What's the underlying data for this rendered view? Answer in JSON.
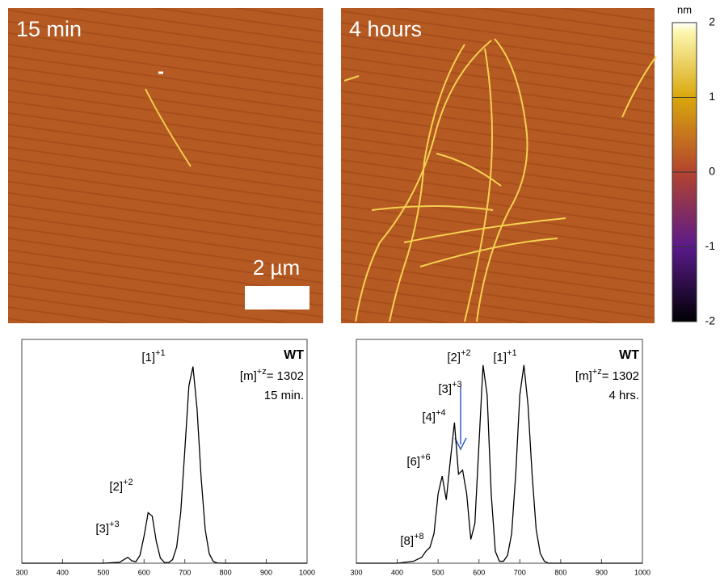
{
  "panels": [
    {
      "label": "15 min"
    },
    {
      "label": "4 hours"
    }
  ],
  "scale_bar": "2 µm",
  "colorbar": {
    "label": "nm",
    "lim": [
      -2,
      2
    ],
    "ticks": [
      2,
      1,
      0,
      -1,
      -2
    ]
  },
  "chart_data": [
    {
      "type": "line",
      "x": [
        300,
        400,
        500,
        540,
        560,
        570,
        580,
        590,
        600,
        610,
        620,
        630,
        640,
        650,
        660,
        670,
        680,
        690,
        700,
        710,
        720,
        730,
        740,
        750,
        760,
        770,
        780,
        800,
        900,
        1000
      ],
      "series": [
        {
          "color": "#000000",
          "values": [
            0,
            0,
            0,
            0.005,
            0.03,
            0.012,
            0.008,
            0.04,
            0.137,
            0.255,
            0.238,
            0.11,
            0.026,
            0.004,
            0.003,
            0.018,
            0.082,
            0.257,
            0.571,
            0.895,
            0.993,
            0.78,
            0.433,
            0.17,
            0.047,
            0.009,
            0.001,
            0,
            0,
            0
          ]
        }
      ],
      "xlim": [
        300,
        1000
      ],
      "xticks": [
        300,
        400,
        500,
        600,
        700,
        800,
        900,
        1000
      ],
      "ylim": [
        0,
        1.13
      ],
      "annotations": [
        {
          "text": "[1]",
          "sup": "+1"
        },
        {
          "text": "[2]",
          "sup": "+2"
        },
        {
          "text": "[3]",
          "sup": "+3"
        }
      ],
      "info": {
        "title": "WT",
        "m": "[m]",
        "z": "+z",
        "value": "= 1302",
        "time": "15 min."
      }
    },
    {
      "type": "line",
      "x": [
        300,
        400,
        440,
        460,
        470,
        480,
        490,
        500,
        510,
        520,
        530,
        540,
        550,
        560,
        570,
        580,
        590,
        600,
        610,
        620,
        630,
        640,
        650,
        660,
        670,
        680,
        690,
        700,
        710,
        720,
        730,
        740,
        750,
        760,
        770,
        780,
        800,
        900,
        1000
      ],
      "series": [
        {
          "color": "#000000",
          "values": [
            0,
            0,
            0.01,
            0.03,
            0.06,
            0.08,
            0.15,
            0.35,
            0.44,
            0.32,
            0.52,
            0.71,
            0.45,
            0.47,
            0.35,
            0.12,
            0.2,
            0.6,
            1.0,
            0.85,
            0.35,
            0.06,
            0.01,
            0.01,
            0.04,
            0.15,
            0.45,
            0.85,
            1.0,
            0.8,
            0.45,
            0.17,
            0.05,
            0.01,
            0,
            0,
            0,
            0,
            0
          ]
        }
      ],
      "xlim": [
        300,
        1000
      ],
      "xticks": [
        300,
        400,
        500,
        600,
        700,
        800,
        900,
        1000
      ],
      "ylim": [
        0,
        1.13
      ],
      "annotations": [
        {
          "text": "[1]",
          "sup": "+1"
        },
        {
          "text": "[2]",
          "sup": "+2"
        },
        {
          "text": "[3]",
          "sup": "+3"
        },
        {
          "text": "[4]",
          "sup": "+4"
        },
        {
          "text": "[6]",
          "sup": "+6"
        },
        {
          "text": "[8]",
          "sup": "+8"
        }
      ],
      "info": {
        "title": "WT",
        "m": "[m]",
        "z": "+z",
        "value": "= 1302",
        "time": "4 hrs."
      }
    }
  ]
}
